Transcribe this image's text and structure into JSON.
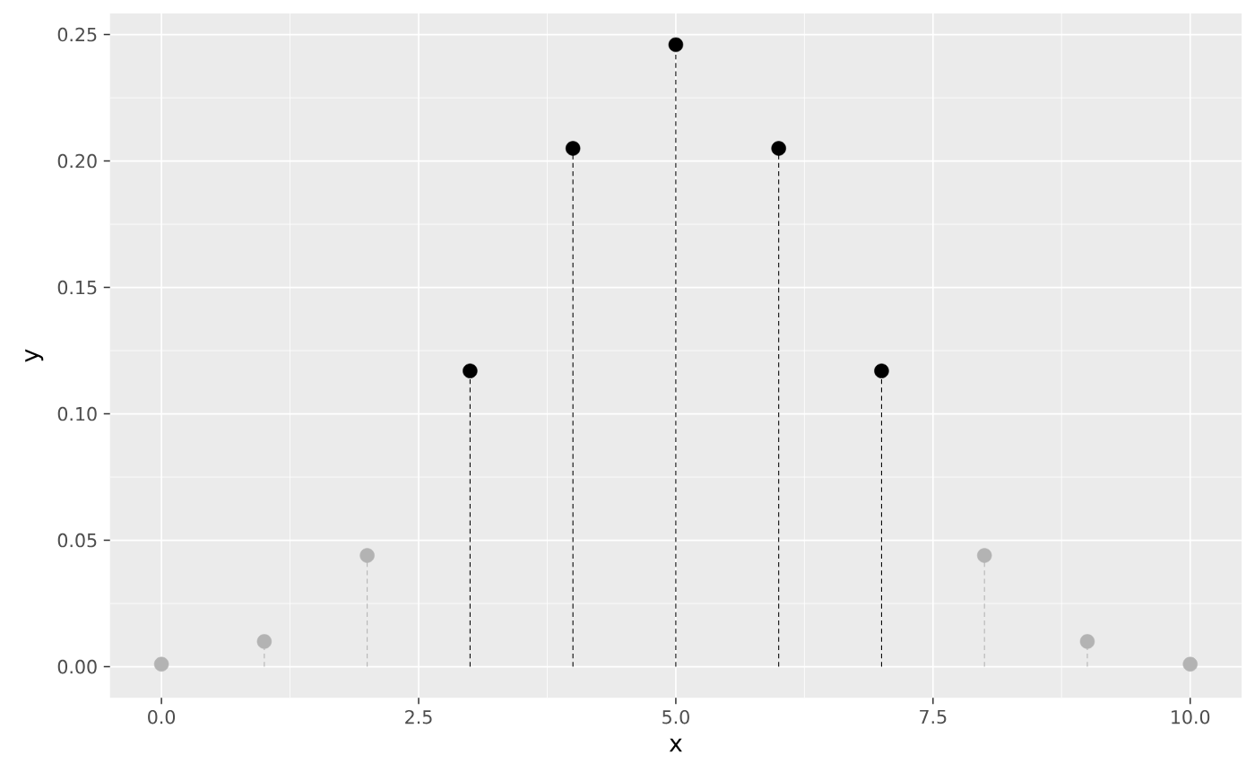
{
  "chart_data": {
    "type": "lollipop",
    "xlabel": "x",
    "ylabel": "y",
    "series": [
      {
        "color": "#b3b3b3",
        "x": [
          0,
          1,
          2,
          8,
          9,
          10
        ],
        "values": [
          0.001,
          0.01,
          0.044,
          0.044,
          0.01,
          0.001
        ]
      },
      {
        "color": "#000000",
        "x": [
          3,
          4,
          5,
          6,
          7
        ],
        "values": [
          0.117,
          0.205,
          0.246,
          0.205,
          0.117
        ]
      }
    ],
    "xlim": [
      -0.5,
      10.5
    ],
    "ylim": [
      -0.0123,
      0.2584
    ],
    "xticks": [
      {
        "value": 0,
        "label": "0.0"
      },
      {
        "value": 2.5,
        "label": "2.5"
      },
      {
        "value": 5,
        "label": "5.0"
      },
      {
        "value": 7.5,
        "label": "7.5"
      },
      {
        "value": 10,
        "label": "10.0"
      }
    ],
    "yticks": [
      {
        "value": 0,
        "label": "0.00"
      },
      {
        "value": 0.05,
        "label": "0.05"
      },
      {
        "value": 0.1,
        "label": "0.10"
      },
      {
        "value": 0.15,
        "label": "0.15"
      },
      {
        "value": 0.2,
        "label": "0.20"
      },
      {
        "value": 0.25,
        "label": "0.25"
      }
    ],
    "grid": true,
    "marker": "circle",
    "line_style": "dashed"
  }
}
